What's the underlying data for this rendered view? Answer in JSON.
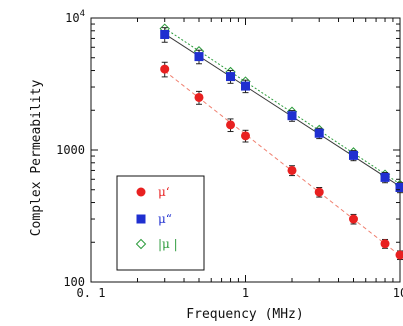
{
  "chart_data": {
    "type": "scatter",
    "xlabel": "Frequency (MHz)",
    "ylabel": "Complex Permeability",
    "x_scale": "log",
    "y_scale": "log",
    "xlim": [
      0.1,
      10
    ],
    "ylim": [
      100,
      10000
    ],
    "x_ticks": [
      {
        "value": 0.1,
        "label": "0. 1"
      },
      {
        "value": 1,
        "label": "1"
      },
      {
        "value": 10,
        "label": "10"
      }
    ],
    "y_ticks": [
      {
        "value": 100,
        "label": "100"
      },
      {
        "value": 1000,
        "label": "1000"
      },
      {
        "value": 10000,
        "label": "10^4"
      }
    ],
    "grid": false,
    "legend_position": "bottom-left",
    "series": [
      {
        "name": "μ'",
        "label": "μ‘",
        "marker": "circle",
        "color": "#e82020",
        "line_color": "#f08070",
        "x": [
          0.3,
          0.5,
          0.8,
          1.0,
          2.0,
          3.0,
          5.0,
          8.0,
          10.0
        ],
        "y": [
          4100,
          2500,
          1550,
          1280,
          700,
          480,
          300,
          195,
          160
        ],
        "error": [
          520,
          280,
          170,
          130,
          60,
          40,
          25,
          15,
          12
        ]
      },
      {
        "name": "μ''",
        "label": "μ“",
        "marker": "square",
        "color": "#1f2fd0",
        "line_color": "#3a3a3a",
        "x": [
          0.3,
          0.5,
          0.8,
          1.0,
          2.0,
          3.0,
          5.0,
          8.0,
          10.0
        ],
        "y": [
          7500,
          5100,
          3600,
          3050,
          1820,
          1340,
          910,
          620,
          520
        ],
        "error": [
          950,
          600,
          400,
          330,
          170,
          120,
          80,
          55,
          45
        ]
      },
      {
        "name": "|μ|",
        "label": "|μ |",
        "marker": "diamond-open",
        "color": "#2a9a3a",
        "line_color": "#2a9a3a",
        "x": [
          0.3,
          0.5,
          0.8,
          1.0,
          2.0,
          3.0,
          5.0,
          8.0,
          10.0
        ],
        "y": [
          8300,
          5600,
          3900,
          3300,
          1950,
          1420,
          960,
          650,
          545
        ],
        "error": [
          0,
          0,
          0,
          0,
          0,
          0,
          0,
          0,
          0
        ]
      }
    ]
  }
}
